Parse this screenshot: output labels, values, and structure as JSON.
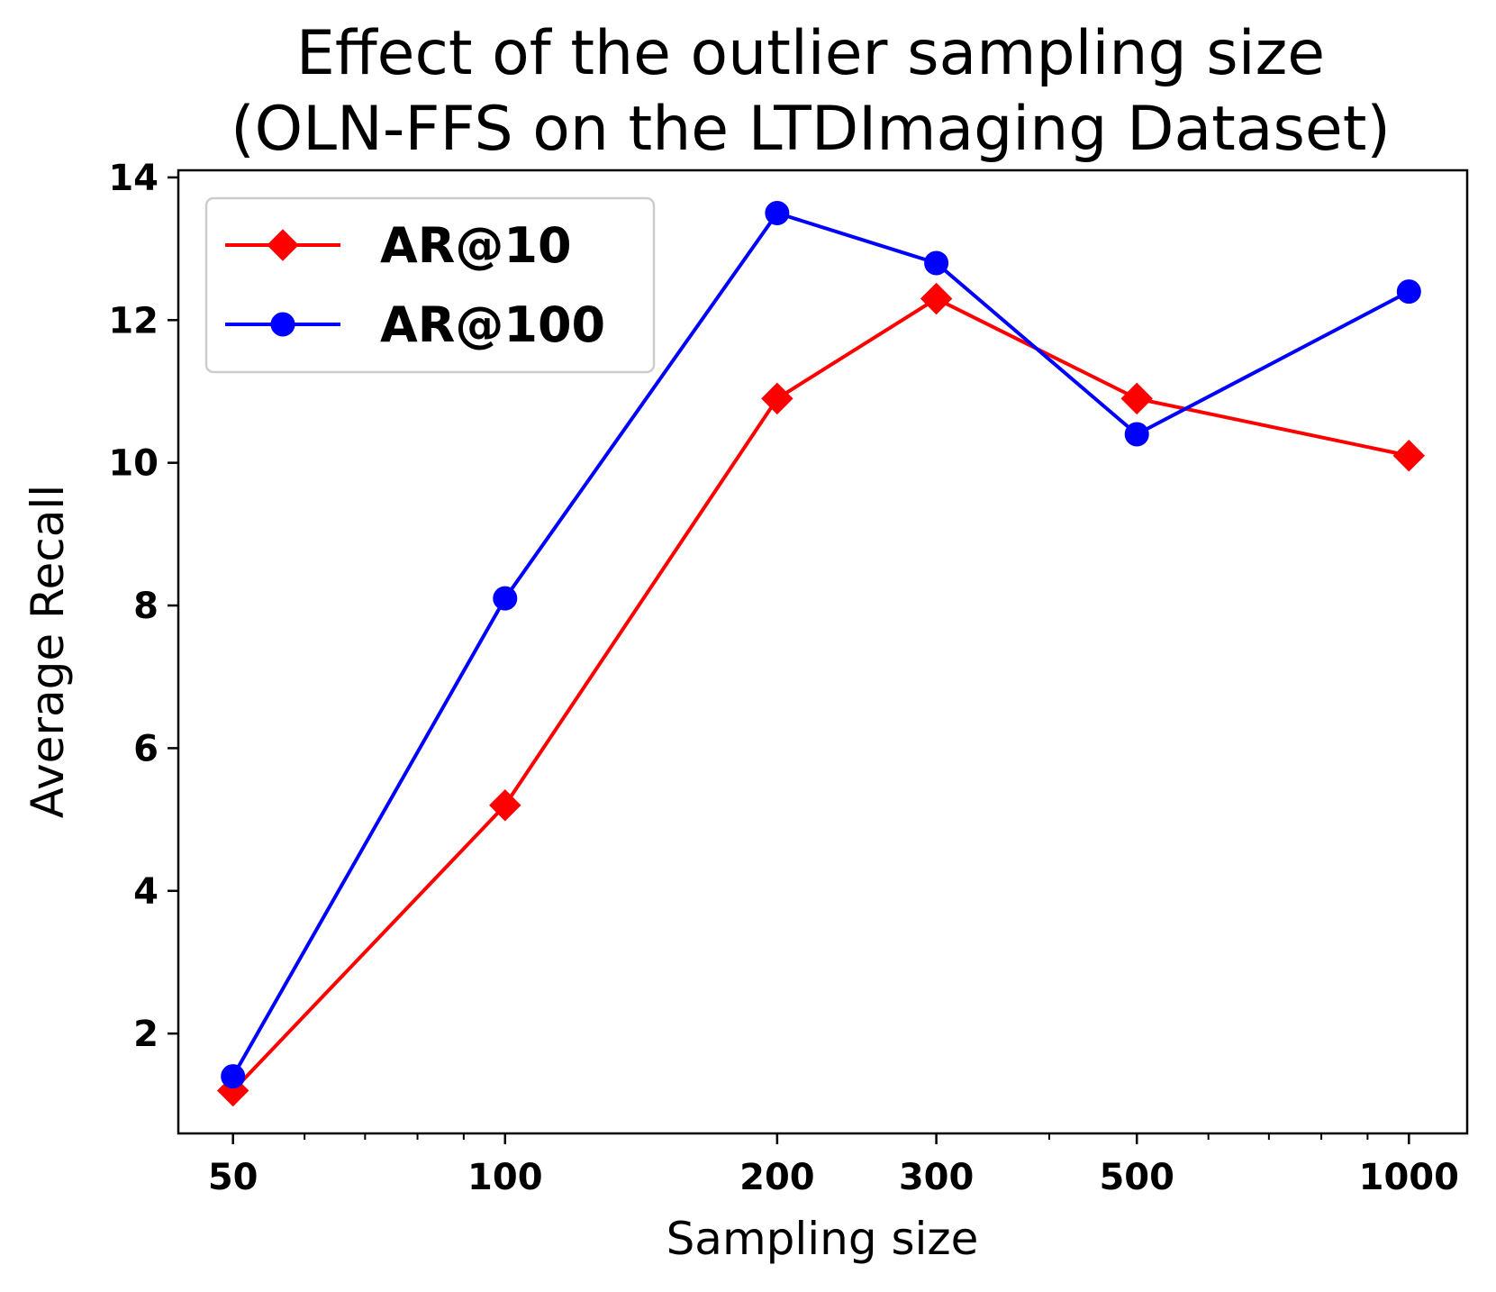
{
  "chart_data": {
    "type": "line",
    "title": [
      "Effect of the outlier sampling size",
      "(OLN-FFS on the LTDImaging Dataset)"
    ],
    "xlabel": "Sampling size",
    "ylabel": "Average Recall",
    "xscale": "log",
    "x": [
      50,
      100,
      200,
      300,
      500,
      1000
    ],
    "xticks": [
      50,
      100,
      200,
      300,
      500,
      1000
    ],
    "xtick_labels": [
      "50",
      "100",
      "200",
      "300",
      "500",
      "1000"
    ],
    "xlim": [
      43.5,
      1160
    ],
    "yticks": [
      2,
      4,
      6,
      8,
      10,
      12,
      14
    ],
    "ytick_labels": [
      "2",
      "4",
      "6",
      "8",
      "10",
      "12",
      "14"
    ],
    "ylim": [
      0.6,
      14.1
    ],
    "grid": false,
    "legend_position": "upper-left",
    "series": [
      {
        "name": "AR@10",
        "color": "#ff0000",
        "marker": "diamond",
        "values": [
          1.2,
          5.2,
          10.9,
          12.3,
          10.9,
          10.1
        ]
      },
      {
        "name": "AR@100",
        "color": "#0000ff",
        "marker": "circle",
        "values": [
          1.4,
          8.1,
          13.5,
          12.8,
          10.4,
          12.4
        ]
      }
    ]
  }
}
